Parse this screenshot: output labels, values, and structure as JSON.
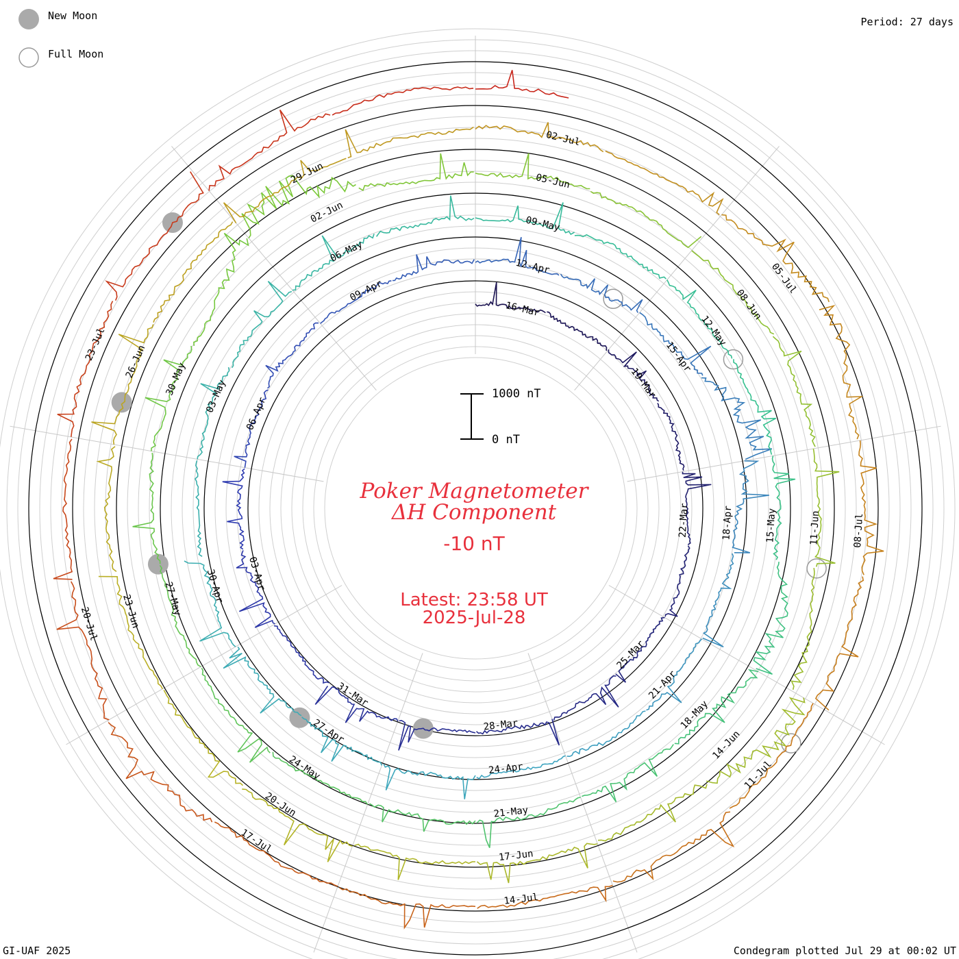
{
  "legend": {
    "new_moon_label": "New Moon",
    "full_moon_label": "Full Moon",
    "new_moon_color": "#aaaaaa",
    "full_moon_color": "#999999"
  },
  "period_label": "Period: 27 days",
  "footer_left": "GI-UAF 2025",
  "footer_right": "Condegram plotted Jul 29 at 00:02 UT",
  "chart_data": {
    "type": "line",
    "subtype": "condegram-spiral",
    "title": "Poker Magnetometer",
    "subtitle": "ΔH Component",
    "baseline_label": "-10 nT",
    "latest_line1": "Latest: 23:58 UT",
    "latest_line2": "2025-Jul-28",
    "title_color": "#e8303c",
    "scale_bar": {
      "top_label": "1000 nT",
      "bottom_label": "0 nT",
      "value_nT": 1000
    },
    "period_days": 27,
    "start_date": "2025-03-15",
    "end_date": "2025-07-28",
    "rotation_colors": [
      "#1a1250",
      "#2e3bb0",
      "#3fa5c0",
      "#35c090",
      "#7ac83a",
      "#b7b325",
      "#c87a1a",
      "#c8201a"
    ],
    "rotation_colors_note": "gradient from dark navy (innermost, Mar) to red (outermost, late Jul)",
    "date_labels": [
      "16-Mar",
      "19-Mar",
      "22-Mar",
      "25-Mar",
      "28-Mar",
      "31-Mar",
      "03-Apr",
      "06-Apr",
      "09-Apr",
      "12-Apr",
      "15-Apr",
      "18-Apr",
      "21-Apr",
      "24-Apr",
      "27-Apr",
      "30-Apr",
      "03-May",
      "06-May",
      "09-May",
      "12-May",
      "15-May",
      "18-May",
      "21-May",
      "24-May",
      "27-May",
      "30-May",
      "02-Jun",
      "05-Jun",
      "08-Jun",
      "11-Jun",
      "14-Jun",
      "17-Jun",
      "20-Jun",
      "23-Jun",
      "26-Jun",
      "29-Jun",
      "02-Jul",
      "05-Jul",
      "08-Jul",
      "11-Jul",
      "14-Jul",
      "17-Jul",
      "20-Jul",
      "23-Jul"
    ],
    "new_moons": [
      "2025-03-29",
      "2025-04-27",
      "2025-05-27",
      "2025-06-25",
      "2025-07-24"
    ],
    "full_moons": [
      "2025-04-13",
      "2025-05-12",
      "2025-06-11",
      "2025-07-10"
    ],
    "activity_peaks_nT": [
      {
        "date": "2025-04-16",
        "value": 780
      },
      {
        "date": "2025-05-16",
        "value": 520
      },
      {
        "date": "2025-06-01",
        "value": 900
      },
      {
        "date": "2025-06-13",
        "value": 680
      },
      {
        "date": "2025-07-05",
        "value": 420
      },
      {
        "date": "2025-07-18",
        "value": 400
      }
    ]
  }
}
